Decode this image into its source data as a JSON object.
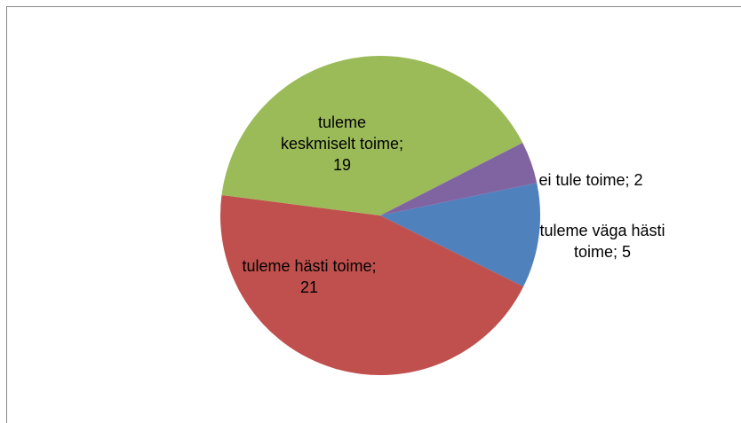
{
  "chart_data": {
    "type": "pie",
    "categories": [
      "tuleme väga hästi toime",
      "tuleme hästi toime",
      "tuleme keskmiselt toime",
      "ei tule toime"
    ],
    "values": [
      5,
      21,
      19,
      2
    ],
    "label_separator": "; ",
    "colors": [
      "#4f81bd",
      "#c0504d",
      "#9bbb59",
      "#8064a2"
    ]
  }
}
